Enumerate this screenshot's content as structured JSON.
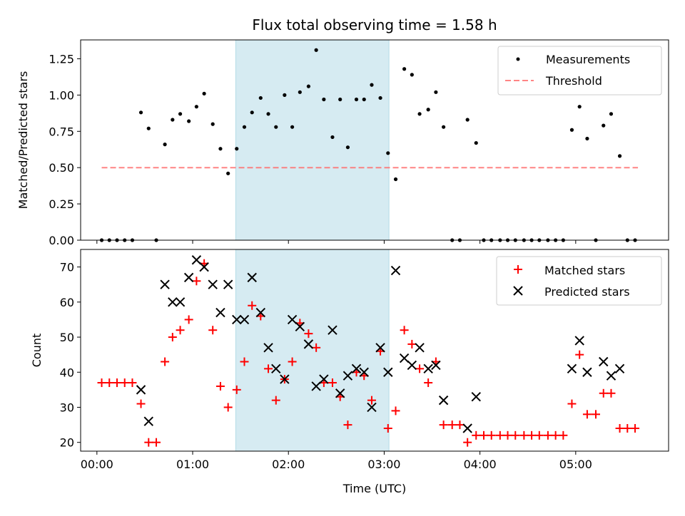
{
  "title": "Flux total observing time = 1.58 h",
  "colors": {
    "measurement": "#000000",
    "threshold": "#ff6f6f",
    "matched": "#ff0000",
    "predicted": "#000000",
    "shade": "#add8e6"
  },
  "chart_data": [
    {
      "type": "scatter",
      "panel": "top",
      "ylabel": "Matched/Predicted stars",
      "xlim": [
        -0.17,
        5.97
      ],
      "ylim": [
        0,
        1.38
      ],
      "yticks": [
        0.0,
        0.25,
        0.5,
        0.75,
        1.0,
        1.25
      ],
      "ytick_labels": [
        "0.00",
        "0.25",
        "0.50",
        "0.75",
        "1.00",
        "1.25"
      ],
      "shaded_region": {
        "x": [
          1.45,
          3.05
        ]
      },
      "threshold": {
        "y": 0.5,
        "x": [
          0.05,
          5.65
        ]
      },
      "legend": {
        "position": "top-right",
        "entries": [
          "Measurements",
          "Threshold"
        ]
      },
      "series": [
        {
          "name": "Measurements",
          "x": [
            0.05,
            0.13,
            0.21,
            0.29,
            0.37,
            0.46,
            0.54,
            0.62,
            0.71,
            0.79,
            0.87,
            0.96,
            1.04,
            1.12,
            1.21,
            1.29,
            1.37,
            1.46,
            1.54,
            1.62,
            1.71,
            1.79,
            1.87,
            1.96,
            2.04,
            2.12,
            2.21,
            2.29,
            2.37,
            2.46,
            2.54,
            2.62,
            2.71,
            2.79,
            2.87,
            2.96,
            3.04,
            3.12,
            3.21,
            3.29,
            3.37,
            3.46,
            3.54,
            3.62,
            3.71,
            3.79,
            3.87,
            3.96,
            4.04,
            4.12,
            4.21,
            4.29,
            4.37,
            4.46,
            4.54,
            4.62,
            4.71,
            4.79,
            4.87,
            4.96,
            5.04,
            5.12,
            5.21,
            5.29,
            5.37,
            5.46,
            5.54,
            5.62
          ],
          "y": [
            0,
            0,
            0,
            0,
            0,
            0.88,
            0.77,
            0,
            0.66,
            0.83,
            0.87,
            0.82,
            0.92,
            1.01,
            0.8,
            0.63,
            0.46,
            0.63,
            0.78,
            0.88,
            0.98,
            0.87,
            0.78,
            1.0,
            0.78,
            1.02,
            1.06,
            1.31,
            0.97,
            0.71,
            0.97,
            0.64,
            0.97,
            0.97,
            1.07,
            0.98,
            0.6,
            0.42,
            1.18,
            1.14,
            0.87,
            0.9,
            1.02,
            0.78,
            0,
            0,
            0.83,
            0.67,
            0,
            0,
            0,
            0,
            0,
            0,
            0,
            0,
            0,
            0,
            0,
            0.76,
            0.92,
            0.7,
            0,
            0.79,
            0.87,
            0.58,
            0,
            0
          ]
        }
      ]
    },
    {
      "type": "scatter",
      "panel": "bottom",
      "xlabel": "Time (UTC)",
      "ylabel": "Count",
      "xlim": [
        -0.17,
        5.97
      ],
      "ylim": [
        17.5,
        75.0
      ],
      "xticks": [
        0,
        1,
        2,
        3,
        4,
        5
      ],
      "xtick_labels": [
        "00:00",
        "01:00",
        "02:00",
        "03:00",
        "04:00",
        "05:00"
      ],
      "yticks": [
        20,
        30,
        40,
        50,
        60,
        70
      ],
      "ytick_labels": [
        "20",
        "30",
        "40",
        "50",
        "60",
        "70"
      ],
      "shaded_region": {
        "x": [
          1.45,
          3.05
        ]
      },
      "legend": {
        "position": "top-right",
        "entries": [
          "Matched stars",
          "Predicted stars"
        ]
      },
      "series": [
        {
          "name": "Matched stars",
          "marker": "+",
          "x": [
            0.05,
            0.13,
            0.21,
            0.29,
            0.37,
            0.46,
            0.54,
            0.62,
            0.71,
            0.79,
            0.87,
            0.96,
            1.04,
            1.12,
            1.21,
            1.29,
            1.37,
            1.46,
            1.54,
            1.62,
            1.71,
            1.79,
            1.87,
            1.96,
            2.04,
            2.12,
            2.21,
            2.29,
            2.37,
            2.46,
            2.54,
            2.62,
            2.71,
            2.79,
            2.87,
            2.96,
            3.04,
            3.12,
            3.21,
            3.29,
            3.37,
            3.46,
            3.54,
            3.62,
            3.71,
            3.79,
            3.87,
            3.96,
            4.04,
            4.12,
            4.21,
            4.29,
            4.37,
            4.46,
            4.54,
            4.62,
            4.71,
            4.79,
            4.87,
            4.96,
            5.04,
            5.12,
            5.21,
            5.29,
            5.37,
            5.46,
            5.54,
            5.62
          ],
          "y": [
            37,
            37,
            37,
            37,
            37,
            31,
            20,
            20,
            43,
            50,
            52,
            55,
            66,
            71,
            52,
            36,
            30,
            35,
            43,
            59,
            56,
            41,
            32,
            38,
            43,
            54,
            51,
            47,
            37,
            37,
            33,
            25,
            40,
            39,
            32,
            46,
            24,
            29,
            52,
            48,
            41,
            37,
            43,
            25,
            25,
            25,
            20,
            22,
            22,
            22,
            22,
            22,
            22,
            22,
            22,
            22,
            22,
            22,
            22,
            31,
            45,
            28,
            28,
            34,
            34,
            24,
            24,
            24
          ]
        },
        {
          "name": "Predicted stars",
          "marker": "x",
          "x": [
            0.46,
            0.54,
            0.71,
            0.79,
            0.87,
            0.96,
            1.04,
            1.12,
            1.21,
            1.29,
            1.37,
            1.46,
            1.54,
            1.62,
            1.71,
            1.79,
            1.87,
            1.96,
            2.04,
            2.12,
            2.21,
            2.29,
            2.37,
            2.46,
            2.54,
            2.62,
            2.71,
            2.79,
            2.87,
            2.96,
            3.04,
            3.12,
            3.21,
            3.29,
            3.37,
            3.46,
            3.54,
            3.62,
            3.87,
            3.96,
            4.96,
            5.04,
            5.12,
            5.29,
            5.37,
            5.46
          ],
          "y": [
            35,
            26,
            65,
            60,
            60,
            67,
            72,
            70,
            65,
            57,
            65,
            55,
            55,
            67,
            57,
            47,
            41,
            38,
            55,
            53,
            48,
            36,
            38,
            52,
            34,
            39,
            41,
            40,
            30,
            47,
            40,
            69,
            44,
            42,
            47,
            41,
            42,
            32,
            24,
            33,
            41,
            49,
            40,
            43,
            39,
            41
          ]
        }
      ]
    }
  ]
}
